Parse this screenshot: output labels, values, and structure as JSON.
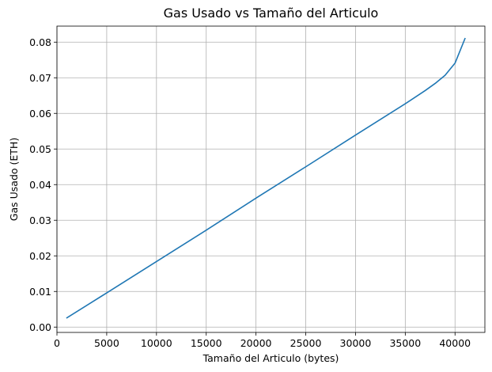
{
  "chart_data": {
    "type": "line",
    "title": "Gas Usado vs Tamaño del Articulo",
    "xlabel": "Tamaño del Articulo (bytes)",
    "ylabel": "Gas Usado (ETH)",
    "xlim": [
      0,
      43000
    ],
    "ylim": [
      -0.0015,
      0.0845
    ],
    "xticks": [
      0,
      5000,
      10000,
      15000,
      20000,
      25000,
      30000,
      35000,
      40000
    ],
    "xtick_labels": [
      "0",
      "5000",
      "10000",
      "15000",
      "20000",
      "25000",
      "30000",
      "35000",
      "40000"
    ],
    "yticks": [
      0.0,
      0.01,
      0.02,
      0.03,
      0.04,
      0.05,
      0.06,
      0.07,
      0.08
    ],
    "ytick_labels": [
      "0.00",
      "0.01",
      "0.02",
      "0.03",
      "0.04",
      "0.05",
      "0.06",
      "0.07",
      "0.08"
    ],
    "grid": true,
    "series": [
      {
        "color": "#1f77b4",
        "x": [
          1000,
          5000,
          10000,
          15000,
          20000,
          25000,
          30000,
          35000,
          37000,
          38000,
          39000,
          40000,
          41000
        ],
        "y": [
          0.0026,
          0.0096,
          0.0184,
          0.0272,
          0.0362,
          0.045,
          0.0539,
          0.0627,
          0.0664,
          0.0684,
          0.0707,
          0.0741,
          0.081
        ]
      }
    ]
  }
}
